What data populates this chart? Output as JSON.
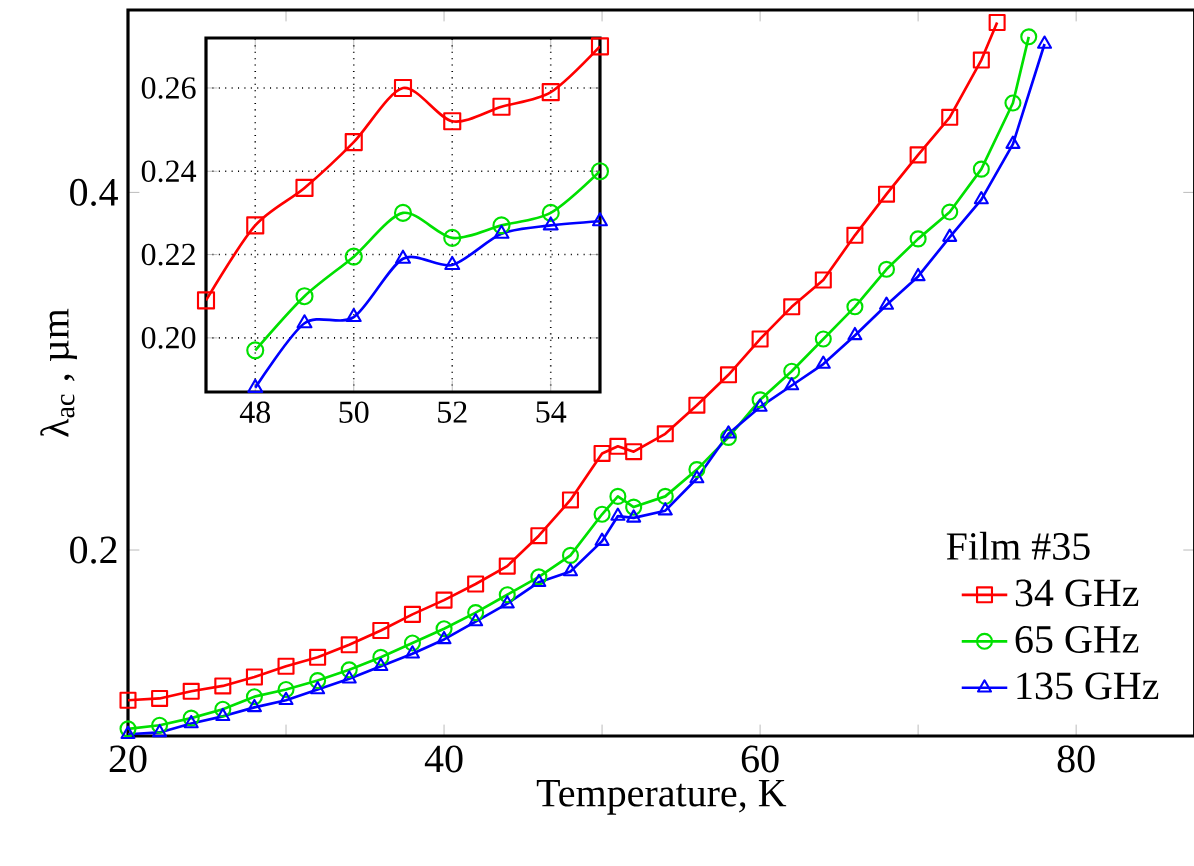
{
  "chart_data": [
    {
      "type": "line",
      "xlabel": "Temperature, K",
      "ylabel": "λ$_{ac}$ , µm",
      "legend_title": "Film #35",
      "legend": "bottom right",
      "grid": false,
      "xlim": [
        20,
        87.5
      ],
      "ylim": [
        0.096,
        0.502
      ],
      "xticks": [
        20,
        {
          "value": 30,
          "label": null
        },
        40,
        {
          "value": 50,
          "label": null
        },
        60,
        {
          "value": 70,
          "label": null
        },
        80
      ],
      "yticks": [
        0.2,
        0.4
      ],
      "series": [
        {
          "name": "34 GHz",
          "color": "#ff0000",
          "marker": "square",
          "x": [
            20,
            22,
            24,
            26,
            28,
            30,
            32,
            34,
            36,
            38,
            40,
            42,
            44,
            46,
            48,
            50,
            51,
            52,
            54,
            56,
            58,
            60,
            62,
            64,
            66,
            68,
            70,
            72,
            74,
            75
          ],
          "values": [
            0.116,
            0.117,
            0.121,
            0.124,
            0.129,
            0.135,
            0.14,
            0.147,
            0.155,
            0.164,
            0.172,
            0.181,
            0.191,
            0.208,
            0.228,
            0.254,
            0.258,
            0.255,
            0.265,
            0.281,
            0.298,
            0.318,
            0.336,
            0.351,
            0.376,
            0.399,
            0.421,
            0.442,
            0.474,
            0.495
          ]
        },
        {
          "name": "65 GHz",
          "color": "#00e000",
          "marker": "circle",
          "x": [
            20,
            22,
            24,
            26,
            28,
            30,
            32,
            34,
            36,
            38,
            40,
            42,
            44,
            46,
            48,
            50,
            51,
            52,
            54,
            56,
            58,
            60,
            62,
            64,
            66,
            68,
            70,
            72,
            74,
            76,
            77
          ],
          "values": [
            0.1,
            0.102,
            0.106,
            0.111,
            0.118,
            0.122,
            0.127,
            0.133,
            0.14,
            0.148,
            0.156,
            0.165,
            0.175,
            0.185,
            0.197,
            0.22,
            0.23,
            0.224,
            0.23,
            0.245,
            0.263,
            0.284,
            0.3,
            0.318,
            0.336,
            0.357,
            0.374,
            0.389,
            0.413,
            0.45,
            0.487
          ]
        },
        {
          "name": "135 GHz",
          "color": "#0000ff",
          "marker": "triangle",
          "x": [
            20,
            22,
            24,
            26,
            28,
            30,
            32,
            34,
            36,
            38,
            40,
            42,
            44,
            46,
            48,
            50,
            51,
            52,
            54,
            56,
            58,
            60,
            62,
            64,
            66,
            68,
            70,
            72,
            74,
            76,
            78
          ],
          "values": [
            0.097,
            0.098,
            0.103,
            0.107,
            0.112,
            0.116,
            0.122,
            0.128,
            0.135,
            0.142,
            0.15,
            0.16,
            0.17,
            0.182,
            0.188,
            0.205,
            0.219,
            0.218,
            0.222,
            0.24,
            0.265,
            0.28,
            0.292,
            0.304,
            0.32,
            0.337,
            0.353,
            0.375,
            0.396,
            0.427,
            0.483
          ]
        }
      ]
    },
    {
      "type": "line",
      "grid": true,
      "xlim": [
        47,
        55
      ],
      "ylim": [
        0.187,
        0.272
      ],
      "xticks": [
        48,
        50,
        52,
        54
      ],
      "yticks": [
        {
          "value": 0.2,
          "label": "0.20"
        },
        0.22,
        0.24,
        0.26
      ],
      "series": [
        {
          "color": "#ff0000",
          "marker": "square",
          "x": [
            47,
            48,
            49,
            50,
            51,
            52,
            53,
            54,
            55
          ],
          "values": [
            0.209,
            0.227,
            0.236,
            0.247,
            0.26,
            0.252,
            0.2555,
            0.259,
            0.27
          ]
        },
        {
          "color": "#00e000",
          "marker": "circle",
          "x": [
            48,
            49,
            50,
            51,
            52,
            53,
            54,
            55
          ],
          "values": [
            0.197,
            0.21,
            0.2195,
            0.23,
            0.224,
            0.227,
            0.23,
            0.24
          ]
        },
        {
          "color": "#0000ff",
          "marker": "triangle",
          "x": [
            48,
            49,
            50,
            51,
            52,
            53,
            54,
            55
          ],
          "values": [
            0.188,
            0.2035,
            0.205,
            0.219,
            0.2175,
            0.225,
            0.227,
            0.228
          ]
        }
      ]
    }
  ]
}
